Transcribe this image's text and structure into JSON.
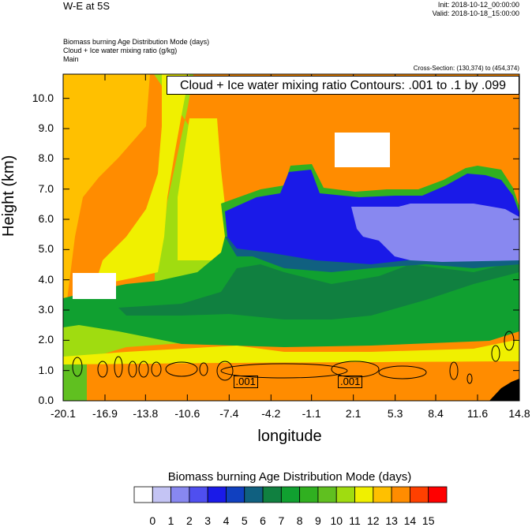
{
  "header": {
    "title": "W-E at 5S",
    "init": "Init: 2018-10-12_00:00:00",
    "valid": "Valid: 2018-10-18_15:00:00",
    "field1": "Biomass burning Age Distribution Mode    (days)",
    "field2": "Cloud + Ice water mixing ratio    (g/kg)",
    "field3": "Main",
    "cross_section": "Cross-Section: (130,374) to (454,374)"
  },
  "chart_data": {
    "type": "heatmap",
    "title": "Cloud + Ice water mixing ratio Contours: .001 to .1 by .099",
    "xlabel": "longitude",
    "ylabel": "Height (km)",
    "x_ticks": [
      "-20.1",
      "-16.9",
      "-13.8",
      "-10.6",
      "-7.4",
      "-4.2",
      "-1.1",
      "2.1",
      "5.3",
      "8.4",
      "11.6",
      "14.8"
    ],
    "y_ticks": [
      "0.0",
      "1.0",
      "2.0",
      "3.0",
      "4.0",
      "5.0",
      "6.0",
      "7.0",
      "8.0",
      "9.0",
      "10.0"
    ],
    "xlim": [
      -20.1,
      14.8
    ],
    "ylim": [
      0,
      10.8
    ],
    "contour_labels": [
      {
        "text": ".001",
        "x": -6.0,
        "y": 0.55
      },
      {
        "text": ".001",
        "x": 2.0,
        "y": 0.55
      }
    ],
    "colorbar": {
      "title": "Biomass burning Age Distribution Mode  (days)",
      "labels": [
        "0",
        "1",
        "2",
        "3",
        "4",
        "5",
        "6",
        "7",
        "8",
        "9",
        "10",
        "11",
        "12",
        "13",
        "14",
        "15"
      ],
      "colors": [
        "#ffffff",
        "#c4c4f4",
        "#8888f0",
        "#4f4ff0",
        "#1a1ae8",
        "#1040c0",
        "#106080",
        "#108040",
        "#10a030",
        "#30b020",
        "#60c020",
        "#a0dc10",
        "#f0f000",
        "#ffc000",
        "#ff8c00",
        "#ff4000",
        "#ff0000"
      ]
    },
    "regions": [
      {
        "name": "upper-left-gold",
        "value": 13
      },
      {
        "name": "orange-background",
        "value": 14
      },
      {
        "name": "yellow-plume",
        "value": 12
      },
      {
        "name": "green-mid-layer",
        "value": 8
      },
      {
        "name": "blue-upper-layer",
        "value": 4
      },
      {
        "name": "light-blue-region",
        "value": 2
      },
      {
        "name": "surface-orange",
        "value": 14
      },
      {
        "name": "missing-white",
        "value": 0
      }
    ]
  }
}
